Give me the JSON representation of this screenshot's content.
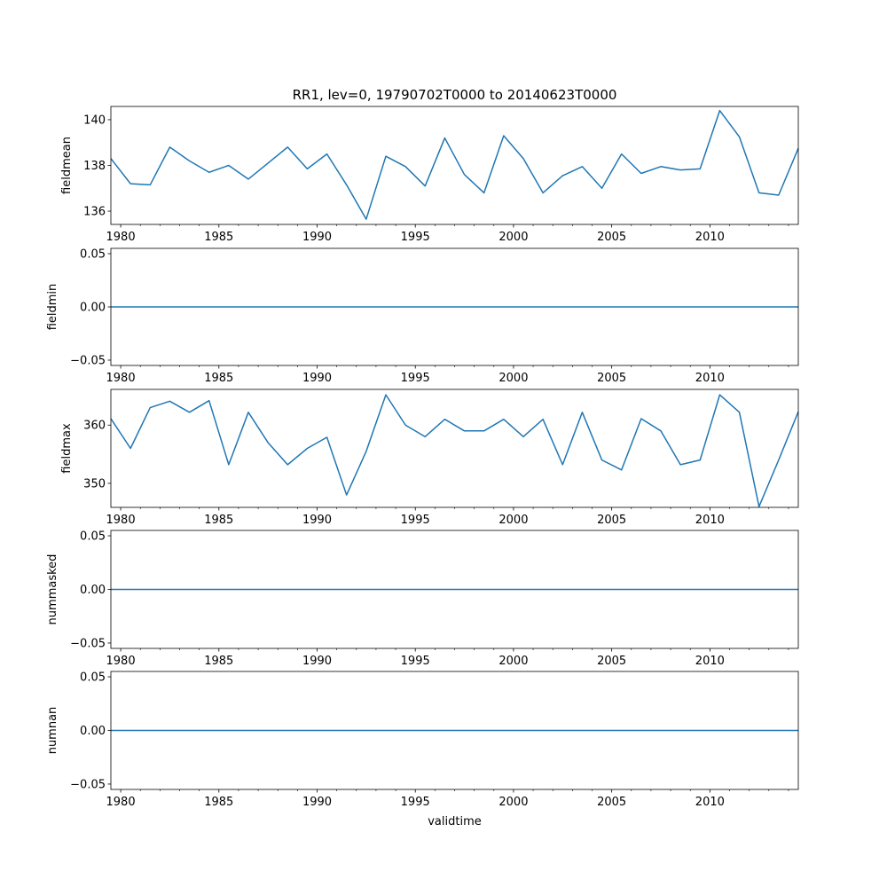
{
  "title": "RR1, lev=0, 19790702T0000 to 20140623T0000",
  "xlabel": "validtime",
  "line_color": "#1f77b4",
  "chart_data": [
    {
      "type": "line",
      "ylabel": "fieldmean",
      "xlim": [
        1979.5,
        2014.5
      ],
      "ylim": [
        135.42,
        140.58
      ],
      "yticks": [
        136,
        138,
        140
      ],
      "ytick_labels": [
        "136",
        "138",
        "140"
      ],
      "x": [
        1979.5,
        1980.5,
        1981.5,
        1982.5,
        1983.5,
        1984.5,
        1985.5,
        1986.5,
        1987.5,
        1988.5,
        1989.5,
        1990.5,
        1991.5,
        1992.5,
        1993.5,
        1994.5,
        1995.5,
        1996.5,
        1997.5,
        1998.5,
        1999.5,
        2000.5,
        2001.5,
        2002.5,
        2003.5,
        2004.5,
        2005.5,
        2006.5,
        2007.5,
        2008.5,
        2009.5,
        2010.5,
        2011.5,
        2012.5,
        2013.5,
        2014.5
      ],
      "values": [
        138.3,
        137.2,
        137.15,
        138.8,
        138.2,
        137.7,
        138.0,
        137.4,
        138.1,
        138.8,
        137.85,
        138.5,
        137.15,
        135.65,
        138.4,
        137.95,
        137.1,
        139.2,
        137.6,
        136.8,
        139.3,
        138.3,
        136.8,
        137.55,
        137.95,
        137.0,
        138.5,
        137.65,
        137.95,
        137.8,
        137.85,
        140.4,
        139.25,
        136.8,
        136.7,
        138.75
      ]
    },
    {
      "type": "line",
      "ylabel": "fieldmin",
      "xlim": [
        1979.5,
        2014.5
      ],
      "ylim": [
        -0.055,
        0.055
      ],
      "yticks": [
        -0.05,
        0.0,
        0.05
      ],
      "ytick_labels": [
        "−0.05",
        "0.00",
        "0.05"
      ],
      "x": [
        1979.5,
        2014.5
      ],
      "values": [
        0,
        0
      ]
    },
    {
      "type": "line",
      "ylabel": "fieldmax",
      "xlim": [
        1979.5,
        2014.5
      ],
      "ylim": [
        345.87,
        366.13
      ],
      "yticks": [
        350,
        360
      ],
      "ytick_labels": [
        "350",
        "360"
      ],
      "x": [
        1979.5,
        1980.5,
        1981.5,
        1982.5,
        1983.5,
        1984.5,
        1985.5,
        1986.5,
        1987.5,
        1988.5,
        1989.5,
        1990.5,
        1991.5,
        1992.5,
        1993.5,
        1994.5,
        1995.5,
        1996.5,
        1997.5,
        1998.5,
        1999.5,
        2000.5,
        2001.5,
        2002.5,
        2003.5,
        2004.5,
        2005.5,
        2006.5,
        2007.5,
        2008.5,
        2009.5,
        2010.5,
        2011.5,
        2012.5,
        2013.5,
        2014.5
      ],
      "values": [
        361.1,
        356.0,
        363.0,
        364.1,
        362.2,
        364.2,
        353.2,
        362.2,
        357.0,
        353.2,
        356.0,
        357.9,
        348.0,
        355.5,
        365.2,
        360.0,
        358.0,
        361.0,
        359.0,
        359.0,
        361.0,
        358.0,
        361.0,
        353.2,
        362.2,
        354.0,
        352.3,
        361.1,
        359.0,
        353.2,
        354.0,
        365.2,
        362.2,
        346.0,
        354.0,
        362.3
      ]
    },
    {
      "type": "line",
      "ylabel": "nummasked",
      "xlim": [
        1979.5,
        2014.5
      ],
      "ylim": [
        -0.055,
        0.055
      ],
      "yticks": [
        -0.05,
        0.0,
        0.05
      ],
      "ytick_labels": [
        "−0.05",
        "0.00",
        "0.05"
      ],
      "x": [
        1979.5,
        2014.5
      ],
      "values": [
        0,
        0
      ]
    },
    {
      "type": "line",
      "ylabel": "numnan",
      "xlim": [
        1979.5,
        2014.5
      ],
      "ylim": [
        -0.055,
        0.055
      ],
      "yticks": [
        -0.05,
        0.0,
        0.05
      ],
      "ytick_labels": [
        "−0.05",
        "0.00",
        "0.05"
      ],
      "x": [
        1979.5,
        2014.5
      ],
      "values": [
        0,
        0
      ]
    }
  ],
  "x_major_ticks": [
    1980,
    1985,
    1990,
    1995,
    2000,
    2005,
    2010
  ],
  "x_major_labels": [
    "1980",
    "1985",
    "1990",
    "1995",
    "2000",
    "2005",
    "2010"
  ],
  "x_minor_ticks": [
    1981,
    1982,
    1983,
    1984,
    1986,
    1987,
    1988,
    1989,
    1991,
    1992,
    1993,
    1994,
    1996,
    1997,
    1998,
    1999,
    2001,
    2002,
    2003,
    2004,
    2006,
    2007,
    2008,
    2009,
    2011,
    2012,
    2013,
    2014
  ]
}
